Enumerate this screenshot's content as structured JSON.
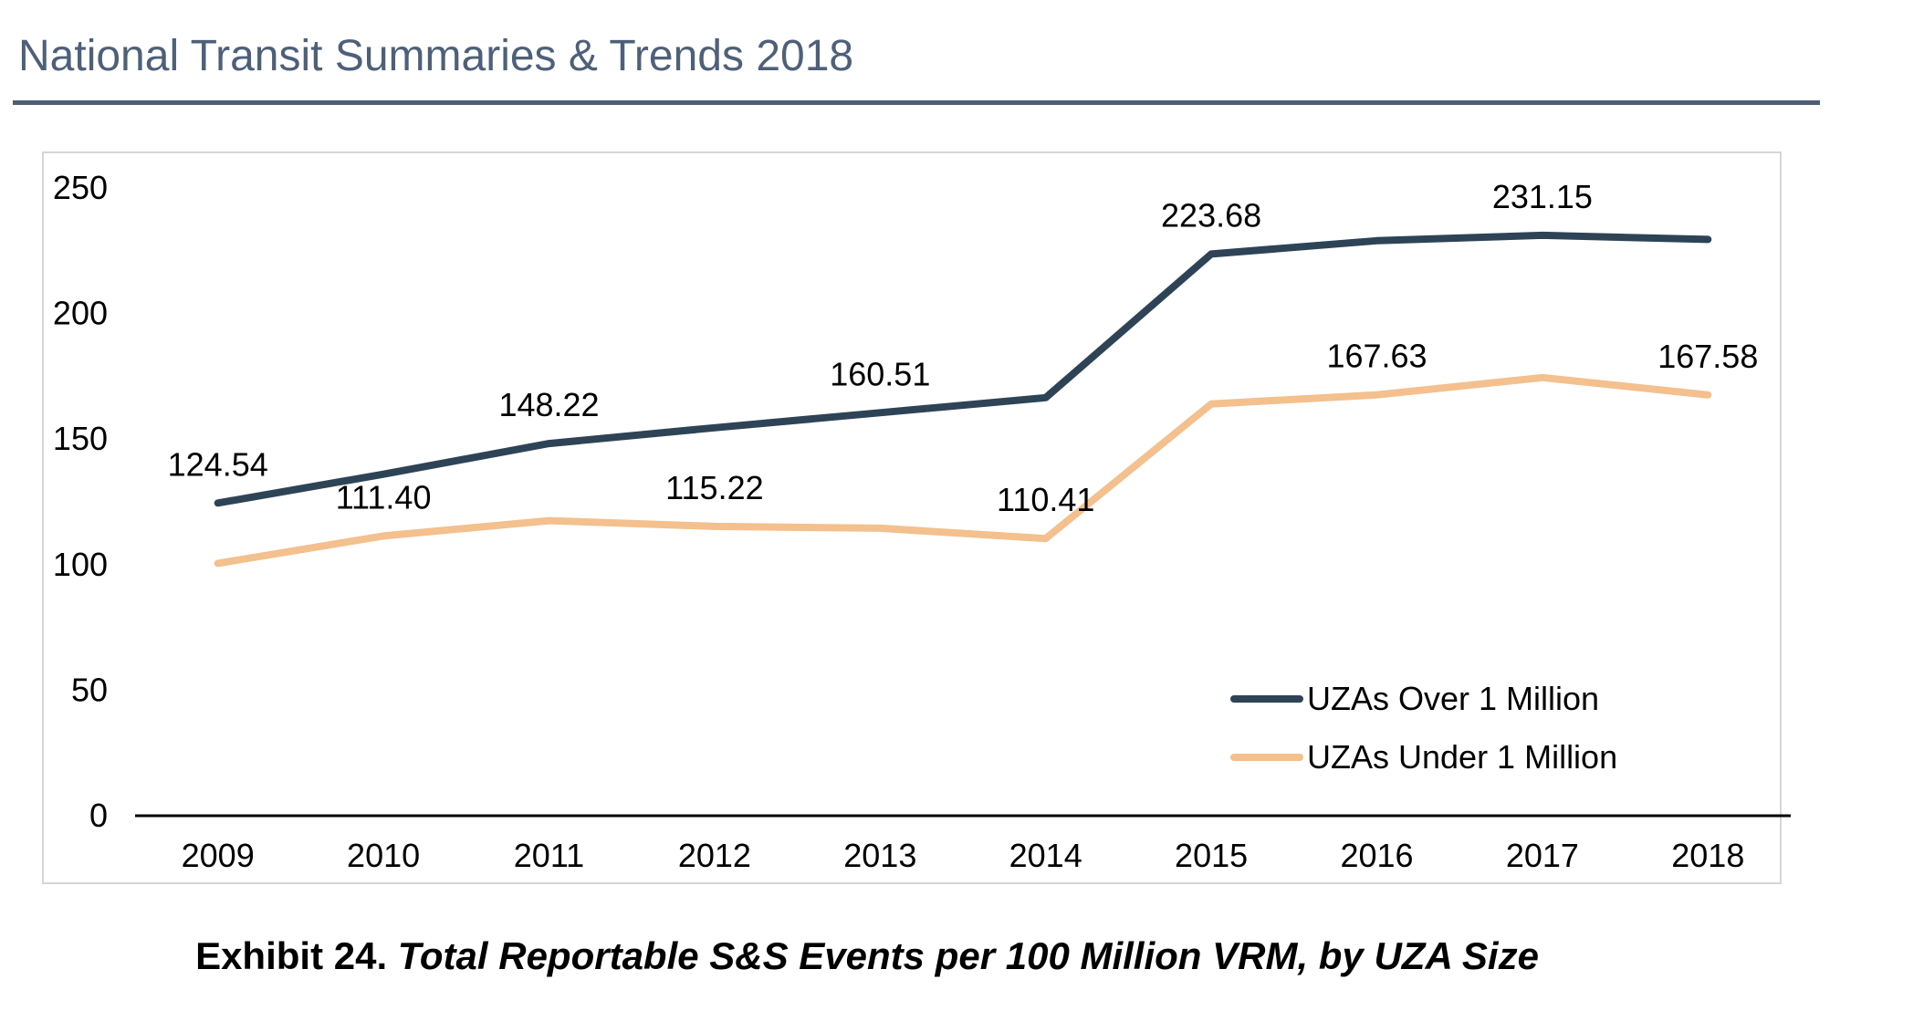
{
  "header": {
    "title": "National Transit Summaries & Trends 2018"
  },
  "caption": {
    "label": "Exhibit 24.",
    "text": "Total Reportable S&S Events per 100 Million VRM, by UZA Size"
  },
  "chart_data": {
    "type": "line",
    "title": "",
    "xlabel": "",
    "ylabel": "",
    "categories": [
      "2009",
      "2010",
      "2011",
      "2012",
      "2013",
      "2014",
      "2015",
      "2016",
      "2017",
      "2018"
    ],
    "ylim": [
      0,
      250
    ],
    "yticks": [
      0,
      50,
      100,
      150,
      200,
      250
    ],
    "grid": false,
    "legend_position": "bottom-right",
    "series": [
      {
        "name": "UZAs Over 1 Million",
        "color": "#2e4356",
        "values": [
          124.54,
          136.0,
          148.22,
          154.5,
          160.51,
          166.5,
          223.68,
          229.0,
          231.15,
          229.5
        ],
        "labels": [
          {
            "index": 0,
            "text": "124.54"
          },
          {
            "index": 2,
            "text": "148.22"
          },
          {
            "index": 4,
            "text": "160.51"
          },
          {
            "index": 6,
            "text": "223.68"
          },
          {
            "index": 8,
            "text": "231.15"
          }
        ]
      },
      {
        "name": "UZAs Under 1 Million",
        "color": "#f3c08e",
        "values": [
          100.5,
          111.4,
          117.5,
          115.22,
          114.5,
          110.41,
          164.0,
          167.63,
          174.5,
          167.58
        ],
        "labels": [
          {
            "index": 1,
            "text": "111.40"
          },
          {
            "index": 3,
            "text": "115.22"
          },
          {
            "index": 5,
            "text": "110.41"
          },
          {
            "index": 7,
            "text": "167.63"
          },
          {
            "index": 9,
            "text": "167.58"
          }
        ]
      }
    ]
  }
}
